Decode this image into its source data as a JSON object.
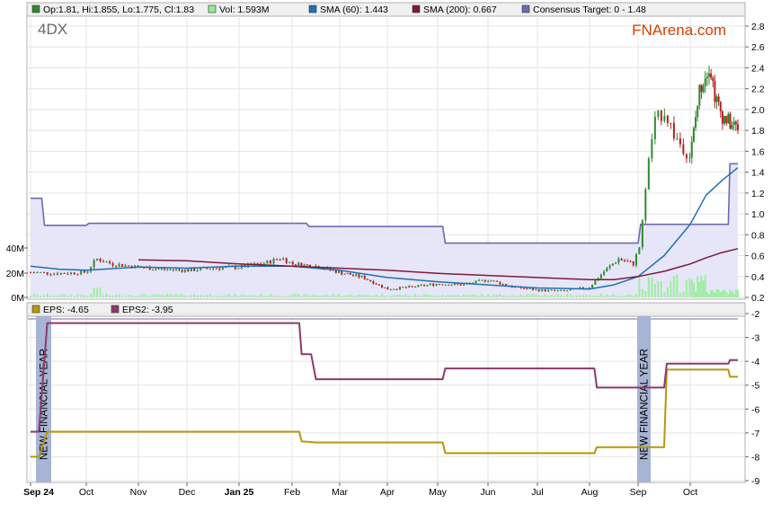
{
  "ticker": "4DX",
  "brand": "FNArena.com",
  "colors": {
    "up_candle": "#2e8b2e",
    "down_candle": "#b22222",
    "volume": "#90ee90",
    "sma60": "#1f6fb5",
    "sma200": "#7b1b3a",
    "consensus": "#6b6bb0",
    "consensus_fill": "#e6e6f8",
    "eps": "#b8960c",
    "eps2": "#8b3a6e",
    "fy_band": "#a8b4d4"
  },
  "legend_top": [
    {
      "color": "#2e8b2e",
      "text": "Op:1.81, Hi:1.855, Lo:1.775, Cl:1.83"
    },
    {
      "color": "#90ee90",
      "text": "Vol: 1.593M"
    },
    {
      "color": "#1f6fb5",
      "text": "SMA (60): 1.443"
    },
    {
      "color": "#7b1b3a",
      "text": "SMA (200): 0.667"
    },
    {
      "color": "#6b6bb0",
      "text": "Consensus Target: 0 - 1.48"
    }
  ],
  "legend_bottom": [
    {
      "color": "#b8960c",
      "text": "EPS: -4.65"
    },
    {
      "color": "#8b3a6e",
      "text": "EPS2: -3.95"
    }
  ],
  "fy_label": "NEW FINANCIAL YEAR",
  "chart_data": [
    {
      "type": "line",
      "description": "Share price (candlestick), volume, SMA(60), SMA(200) and consensus target band",
      "x_labels": [
        "Sep 24",
        "Oct",
        "Nov",
        "Dec",
        "Jan 25",
        "Feb",
        "Mar",
        "Apr",
        "May",
        "Jun",
        "Jul",
        "Aug",
        "Sep",
        "Oct"
      ],
      "y_ticks": [
        0.2,
        0.4,
        0.6,
        0.8,
        1.0,
        1.2,
        1.4,
        1.6,
        1.8,
        2.0,
        2.2,
        2.4,
        2.6,
        2.8
      ],
      "ylim": [
        0.2,
        2.9
      ],
      "volume_ticks": [
        "0M",
        "20M",
        "40M"
      ],
      "price_close": [
        [
          0.0,
          0.44
        ],
        [
          0.5,
          0.43
        ],
        [
          1.0,
          0.44
        ],
        [
          1.2,
          0.57
        ],
        [
          1.5,
          0.52
        ],
        [
          2.0,
          0.49
        ],
        [
          2.5,
          0.47
        ],
        [
          3.0,
          0.46
        ],
        [
          3.5,
          0.48
        ],
        [
          4.0,
          0.49
        ],
        [
          4.5,
          0.53
        ],
        [
          4.8,
          0.58
        ],
        [
          5.0,
          0.52
        ],
        [
          5.5,
          0.5
        ],
        [
          6.0,
          0.44
        ],
        [
          6.5,
          0.39
        ],
        [
          7.0,
          0.28
        ],
        [
          7.5,
          0.3
        ],
        [
          8.0,
          0.33
        ],
        [
          8.5,
          0.32
        ],
        [
          9.0,
          0.37
        ],
        [
          9.5,
          0.3
        ],
        [
          10.0,
          0.27
        ],
        [
          10.5,
          0.26
        ],
        [
          11.0,
          0.3
        ],
        [
          11.3,
          0.45
        ],
        [
          11.6,
          0.57
        ],
        [
          11.9,
          0.52
        ],
        [
          12.05,
          0.72
        ],
        [
          12.15,
          1.3
        ],
        [
          12.3,
          1.85
        ],
        [
          12.5,
          2.0
        ],
        [
          12.7,
          1.75
        ],
        [
          13.0,
          1.55
        ],
        [
          13.3,
          2.2
        ],
        [
          13.6,
          2.45
        ],
        [
          13.8,
          2.1
        ],
        [
          14.0,
          1.95
        ],
        [
          14.3,
          1.85
        ],
        [
          14.5,
          1.83
        ]
      ],
      "series": [
        {
          "name": "SMA (60)",
          "points": [
            [
              0.0,
              0.5
            ],
            [
              0.5,
              0.47
            ],
            [
              1.0,
              0.46
            ],
            [
              2.0,
              0.49
            ],
            [
              3.0,
              0.48
            ],
            [
              4.0,
              0.5
            ],
            [
              5.0,
              0.5
            ],
            [
              6.0,
              0.46
            ],
            [
              7.0,
              0.39
            ],
            [
              8.0,
              0.35
            ],
            [
              9.0,
              0.32
            ],
            [
              10.0,
              0.29
            ],
            [
              11.0,
              0.28
            ],
            [
              11.5,
              0.32
            ],
            [
              12.0,
              0.4
            ],
            [
              12.5,
              0.6
            ],
            [
              13.0,
              0.9
            ],
            [
              13.5,
              1.18
            ],
            [
              14.0,
              1.32
            ],
            [
              14.5,
              1.443
            ]
          ]
        },
        {
          "name": "SMA (200)",
          "points": [
            [
              2.0,
              0.56
            ],
            [
              3.0,
              0.55
            ],
            [
              4.0,
              0.52
            ],
            [
              5.0,
              0.5
            ],
            [
              6.0,
              0.48
            ],
            [
              7.0,
              0.46
            ],
            [
              8.0,
              0.43
            ],
            [
              9.0,
              0.41
            ],
            [
              10.0,
              0.39
            ],
            [
              11.0,
              0.37
            ],
            [
              11.5,
              0.37
            ],
            [
              12.0,
              0.4
            ],
            [
              12.5,
              0.45
            ],
            [
              13.0,
              0.52
            ],
            [
              13.5,
              0.58
            ],
            [
              14.0,
              0.63
            ],
            [
              14.5,
              0.667
            ]
          ]
        },
        {
          "name": "Consensus Target",
          "points": [
            [
              0.0,
              1.15
            ],
            [
              0.2,
              1.15
            ],
            [
              0.25,
              0.89
            ],
            [
              1.0,
              0.89
            ],
            [
              1.05,
              0.91
            ],
            [
              5.3,
              0.91
            ],
            [
              5.35,
              0.88
            ],
            [
              8.1,
              0.88
            ],
            [
              8.15,
              0.72
            ],
            [
              12.0,
              0.72
            ],
            [
              12.05,
              0.9
            ],
            [
              14.2,
              0.9
            ],
            [
              14.25,
              1.48
            ],
            [
              14.5,
              1.48
            ]
          ]
        }
      ]
    },
    {
      "type": "line",
      "description": "EPS and EPS2 consensus forecasts",
      "y_ticks": [
        -9,
        -8,
        -7,
        -6,
        -5,
        -4,
        -3,
        -2
      ],
      "ylim": [
        -9,
        -1.8
      ],
      "series": [
        {
          "name": "EPS",
          "points": [
            [
              0.0,
              -8.0
            ],
            [
              0.15,
              -8.0
            ],
            [
              0.3,
              -6.95
            ],
            [
              5.15,
              -6.95
            ],
            [
              5.2,
              -7.35
            ],
            [
              5.5,
              -7.4
            ],
            [
              8.1,
              -7.4
            ],
            [
              8.15,
              -7.85
            ],
            [
              11.1,
              -7.85
            ],
            [
              11.15,
              -7.6
            ],
            [
              12.5,
              -7.6
            ],
            [
              12.55,
              -4.35
            ],
            [
              14.2,
              -4.35
            ],
            [
              14.25,
              -4.65
            ],
            [
              14.5,
              -4.65
            ]
          ]
        },
        {
          "name": "EPS2",
          "points": [
            [
              0.0,
              -6.95
            ],
            [
              0.15,
              -6.95
            ],
            [
              0.3,
              -2.4
            ],
            [
              5.15,
              -2.4
            ],
            [
              5.2,
              -3.7
            ],
            [
              5.4,
              -3.7
            ],
            [
              5.5,
              -4.75
            ],
            [
              8.1,
              -4.75
            ],
            [
              8.15,
              -4.3
            ],
            [
              11.1,
              -4.3
            ],
            [
              11.15,
              -5.1
            ],
            [
              12.5,
              -5.1
            ],
            [
              12.55,
              -4.1
            ],
            [
              14.2,
              -4.1
            ],
            [
              14.25,
              -3.95
            ],
            [
              14.5,
              -3.95
            ]
          ]
        }
      ]
    }
  ]
}
